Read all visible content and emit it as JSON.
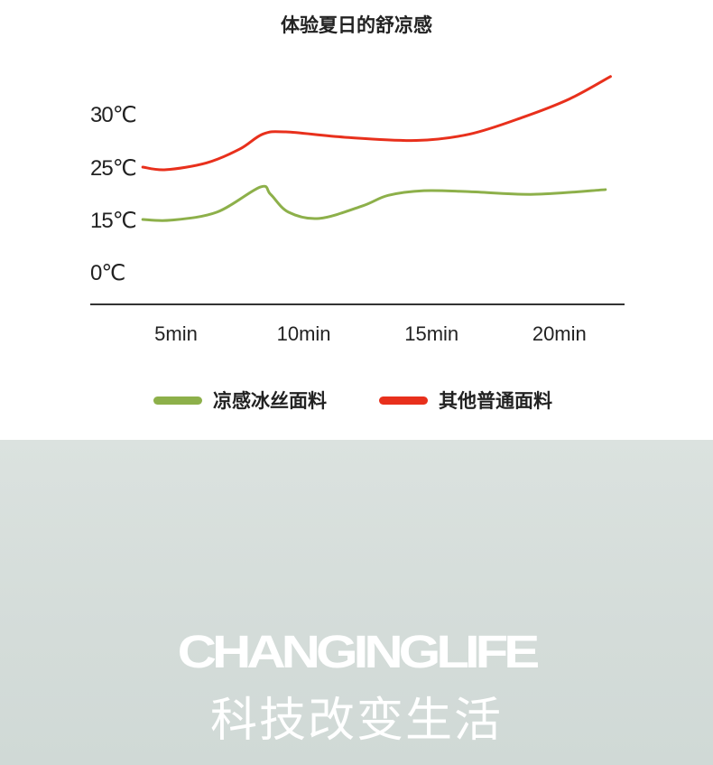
{
  "chart_data": {
    "type": "line",
    "title": "体验夏日的舒凉感",
    "xlabel": "",
    "ylabel": "",
    "x_ticks": [
      {
        "value": 5,
        "label": "5min"
      },
      {
        "value": 10,
        "label": "10min"
      },
      {
        "value": 15,
        "label": "15min"
      },
      {
        "value": 20,
        "label": "20min"
      }
    ],
    "y_ticks": [
      {
        "value": 0,
        "label": "0℃"
      },
      {
        "value": 15,
        "label": "15℃"
      },
      {
        "value": 25,
        "label": "25℃"
      },
      {
        "value": 30,
        "label": "30℃"
      }
    ],
    "grid": false,
    "legend_position": "bottom",
    "series": [
      {
        "name": "凉感冰丝面料",
        "color": "#8db04a",
        "x": [
          3.7,
          4.8,
          6.6,
          8.3,
          8.7,
          9.4,
          10.6,
          12.3,
          13.3,
          14.7,
          16.5,
          19.0,
          21.8
        ],
        "y": [
          15,
          14.8,
          16.4,
          21.2,
          19.8,
          16.4,
          15.2,
          17.6,
          19.6,
          20.5,
          20.3,
          19.8,
          20.7
        ]
      },
      {
        "name": "其他普通面料",
        "color": "#e8301c",
        "x": [
          3.7,
          4.6,
          6.2,
          7.5,
          8.4,
          9.3,
          11.6,
          14.4,
          16.5,
          18.6,
          20.4,
          22.0
        ],
        "y": [
          25,
          24.5,
          25.4,
          26.7,
          28.1,
          28.3,
          27.8,
          27.5,
          28.1,
          29.7,
          31.4,
          33.5
        ]
      }
    ]
  },
  "banner": {
    "english": "CHANGINGLIFE",
    "chinese": "科技改变生活"
  }
}
